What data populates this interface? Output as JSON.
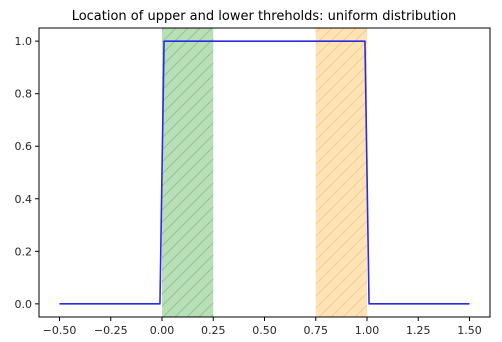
{
  "chart_data": {
    "type": "line",
    "title": "Location of upper and lower threholds: uniform distribution",
    "xlabel": "",
    "ylabel": "",
    "xlim": [
      -0.6,
      1.6
    ],
    "ylim": [
      -0.05,
      1.05
    ],
    "x_ticks": [
      -0.5,
      -0.25,
      0.0,
      0.25,
      0.5,
      0.75,
      1.0,
      1.25,
      1.5
    ],
    "x_tick_labels": [
      "−0.50",
      "−0.25",
      "0.00",
      "0.25",
      "0.50",
      "0.75",
      "1.00",
      "1.25",
      "1.50"
    ],
    "y_ticks": [
      0.0,
      0.2,
      0.4,
      0.6,
      0.8,
      1.0
    ],
    "y_tick_labels": [
      "0.0",
      "0.2",
      "0.4",
      "0.6",
      "0.8",
      "1.0"
    ],
    "grid": false,
    "series": [
      {
        "color": "#2a2ae8",
        "x": [
          -0.5,
          -0.01,
          0.01,
          0.99,
          1.01,
          1.5
        ],
        "y": [
          0.0,
          0.0,
          1.0,
          1.0,
          0.0,
          0.0
        ]
      }
    ],
    "shaded_regions": [
      {
        "x0": 0.0,
        "x1": 0.25,
        "fill": "#b9dfb9",
        "hatch": "#8fc98f"
      },
      {
        "x0": 0.75,
        "x1": 1.0,
        "fill": "#fde3b5",
        "hatch": "#f7cf8a"
      }
    ]
  }
}
